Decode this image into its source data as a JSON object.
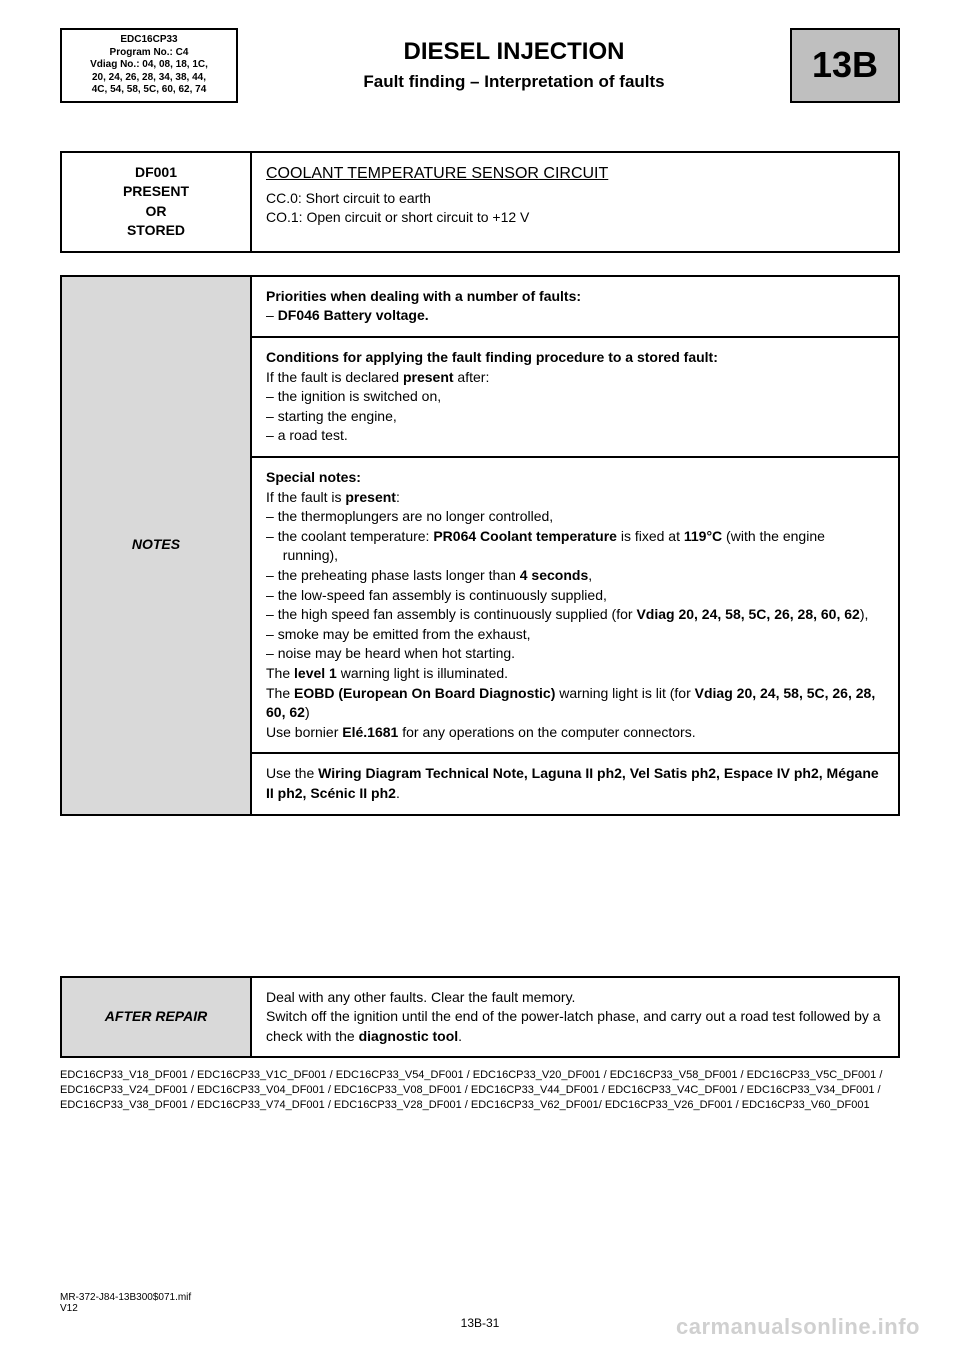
{
  "header": {
    "ecu_box": {
      "line1": "EDC16CP33",
      "line2": "Program No.: C4",
      "line3": "Vdiag No.: 04, 08, 18, 1C,",
      "line4": "20, 24, 26, 28, 34, 38, 44,",
      "line5": "4C, 54, 58, 5C, 60, 62, 74"
    },
    "main_title": "DIESEL INJECTION",
    "sub_title": "Fault finding – Interpretation of faults",
    "code_box": "13B"
  },
  "fault": {
    "code_line1": "DF001",
    "code_line2": "PRESENT",
    "code_line3": "OR",
    "code_line4": "STORED",
    "title": "COOLANT TEMPERATURE SENSOR CIRCUIT",
    "cc": "CC.0: Short circuit to earth",
    "co": "CO.1: Open circuit or short circuit to +12 V"
  },
  "notes": {
    "label": "NOTES",
    "priorities_heading": "Priorities when dealing with a number of faults:",
    "priorities_item": "DF046 Battery voltage.",
    "conditions_heading": "Conditions for applying the fault finding procedure to a stored fault:",
    "conditions_intro_a": "If the fault is declared ",
    "conditions_intro_b": "present",
    "conditions_intro_c": " after:",
    "conditions_items": [
      "the ignition is switched on,",
      "starting the engine,",
      "a road test."
    ],
    "special_heading": "Special notes:",
    "special_intro_a": "If the fault is ",
    "special_intro_b": "present",
    "special_intro_c": ":",
    "sp1": "the thermoplungers are no longer controlled,",
    "sp2_a": "the coolant temperature: ",
    "sp2_b": "PR064 Coolant temperature",
    "sp2_c": " is fixed at ",
    "sp2_d": "119°C",
    "sp2_e": " (with the engine running),",
    "sp3_a": "the preheating phase lasts longer than ",
    "sp3_b": "4 seconds",
    "sp3_c": ",",
    "sp4": "the low-speed fan assembly is continuously supplied,",
    "sp5_a": "the high speed fan assembly is continuously supplied (for ",
    "sp5_b": "Vdiag 20, 24, 58, 5C, 26, 28, 60, 62",
    "sp5_c": "),",
    "sp6": "smoke may be emitted from the exhaust,",
    "sp7": "noise may be heard when hot starting.",
    "lvl1_a": "The ",
    "lvl1_b": "level 1",
    "lvl1_c": " warning light is illuminated.",
    "eobd_a": "The ",
    "eobd_b": "EOBD (European On Board Diagnostic)",
    "eobd_c": " warning light is lit (for ",
    "eobd_d": "Vdiag 20, 24, 58, 5C, 26, 28, 60, 62",
    "eobd_e": ")",
    "bornier_a": "Use bornier ",
    "bornier_b": "Elé.1681",
    "bornier_c": " for any operations on the computer connectors.",
    "wiring_a": "Use the ",
    "wiring_b": "Wiring Diagram Technical Note, Laguna II ph2, Vel Satis ph2, Espace IV ph2, Mégane II ph2, Scénic II ph2",
    "wiring_c": "."
  },
  "after_repair": {
    "label": "AFTER REPAIR",
    "line1": "Deal with any other faults. Clear the fault memory.",
    "line2_a": "Switch off the ignition until the end of the power-latch phase, and carry out a road test followed by a check with the ",
    "line2_b": "diagnostic tool",
    "line2_c": "."
  },
  "ref_codes": "EDC16CP33_V18_DF001 / EDC16CP33_V1C_DF001 / EDC16CP33_V54_DF001 / EDC16CP33_V20_DF001 / EDC16CP33_V58_DF001 / EDC16CP33_V5C_DF001 / EDC16CP33_V24_DF001 / EDC16CP33_V04_DF001 / EDC16CP33_V08_DF001 / EDC16CP33_V44_DF001 / EDC16CP33_V4C_DF001 / EDC16CP33_V34_DF001 / EDC16CP33_V38_DF001 / EDC16CP33_V74_DF001 / EDC16CP33_V28_DF001 / EDC16CP33_V62_DF001/ EDC16CP33_V26_DF001 / EDC16CP33_V60_DF001",
  "footer": {
    "ref": "MR-372-J84-13B300$071.mif",
    "ver": "V12",
    "pagenum": "13B-31"
  },
  "watermark": "carmanualsonline.info"
}
